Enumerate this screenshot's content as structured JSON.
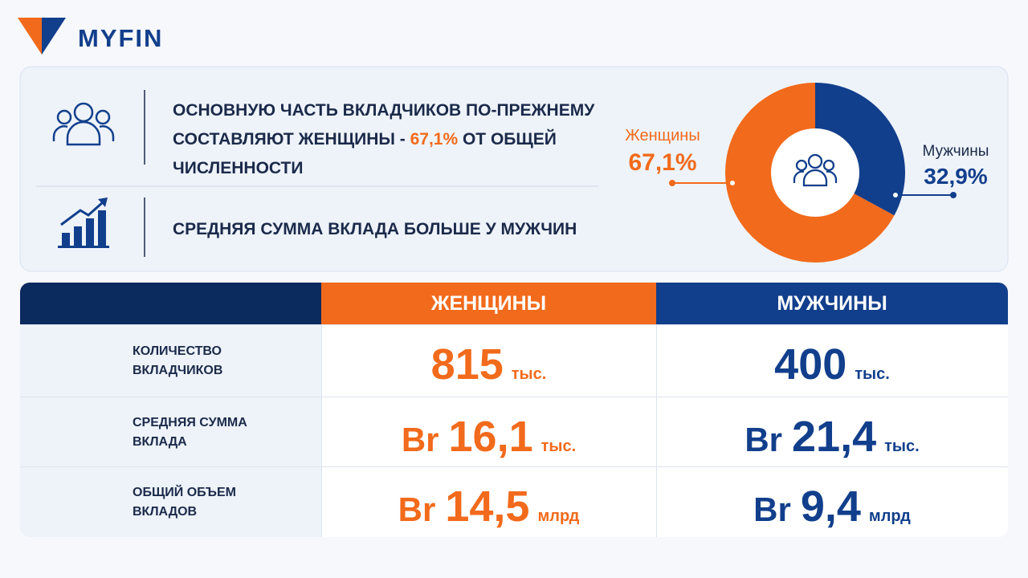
{
  "header": {
    "logo": "MYFIN"
  },
  "facts": [
    {
      "text_before": "ОСНОВНУЮ ЧАСТЬ ВКЛАДЧИКОВ ПО-ПРЕЖНЕМУ СОСТАВЛЯЮТ ЖЕНЩИНЫ - ",
      "highlight": "67,1%",
      "text_after": " ОТ ОБЩЕЙ ЧИСЛЕННОСТИ"
    },
    {
      "text": "СРЕДНЯЯ СУММА ВКЛАДА БОЛЬШЕ У МУЖЧИН"
    }
  ],
  "chart_data": {
    "type": "pie",
    "categories": [
      "Женщины",
      "Мужчины"
    ],
    "values": [
      67.1,
      32.9
    ],
    "value_labels": [
      "67,1%",
      "32,9%"
    ],
    "colors": [
      "#f26a1b",
      "#123f8c"
    ]
  },
  "table": {
    "columns": [
      "ЖЕНЩИНЫ",
      "МУЖЧИНЫ"
    ],
    "rows": [
      {
        "label": "КОЛИЧЕСТВО ВКЛАДЧИКОВ",
        "cells": [
          {
            "value": "815",
            "unit": "тыс."
          },
          {
            "value": "400",
            "unit": "тыс."
          }
        ]
      },
      {
        "label": "СРЕДНЯЯ СУММА ВКЛАДА",
        "cells": [
          {
            "currency": "Br",
            "value": "16,1",
            "unit": "тыс."
          },
          {
            "currency": "Br",
            "value": "21,4",
            "unit": "тыс."
          }
        ]
      },
      {
        "label": "ОБЩИЙ ОБЪЕМ ВКЛАДОВ",
        "cells": [
          {
            "currency": "Br",
            "value": "14,5",
            "unit": "млрд"
          },
          {
            "currency": "Br",
            "value": "9,4",
            "unit": "млрд"
          }
        ]
      }
    ]
  }
}
